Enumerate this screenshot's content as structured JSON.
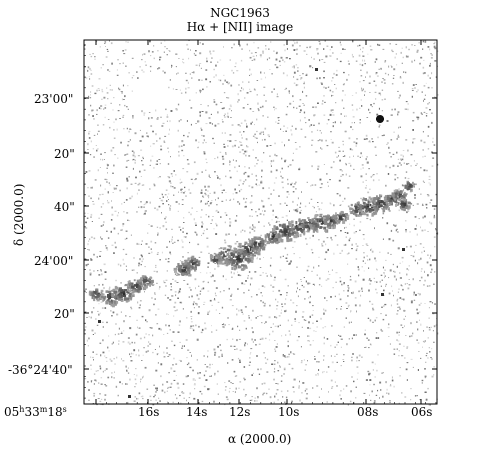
{
  "figure": {
    "title": "NGC1963",
    "subtitle": "Hα + [NII] image",
    "xlabel": "α (2000.0)",
    "ylabel": "δ (2000.0)",
    "x_ticks": [
      "05h33m18s",
      "16s",
      "14s",
      "12s",
      "10s",
      "08s",
      "06s"
    ],
    "y_ticks": [
      "23'00\"",
      "20\"",
      "40\"",
      "24'00\"",
      "20\"",
      "-36°24'40\""
    ],
    "colors": {
      "background": "#ffffff",
      "frame": "#000000",
      "emission": "#2a2a2a",
      "noise": "#9a9a9a"
    }
  }
}
